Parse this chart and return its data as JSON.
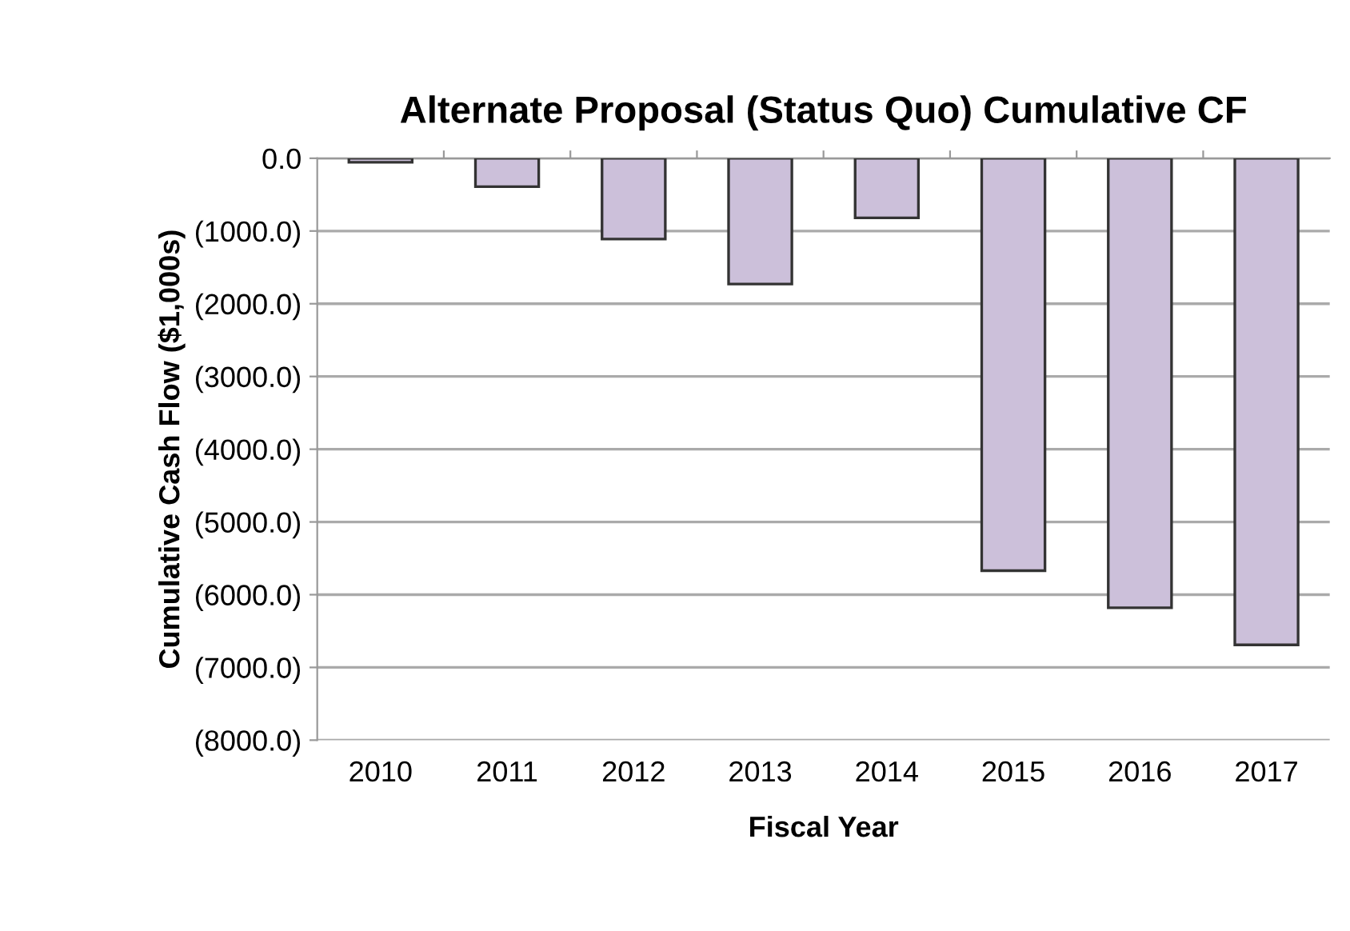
{
  "chart_data": {
    "type": "bar",
    "title": "Alternate Proposal (Status Quo) Cumulative CF",
    "xlabel": "Fiscal Year",
    "ylabel": "Cumulative Cash Flow ($1,000s)",
    "categories": [
      "2010",
      "2011",
      "2012",
      "2013",
      "2014",
      "2015",
      "2016",
      "2017"
    ],
    "values": [
      -55,
      -390,
      -1110,
      -1730,
      -820,
      -5670,
      -6180,
      -6690
    ],
    "color": "#ccc0da",
    "ylim": [
      -8000,
      0
    ],
    "yticks": [
      {
        "value": 0,
        "label": "0.0"
      },
      {
        "value": -1000,
        "label": "(1000.0)"
      },
      {
        "value": -2000,
        "label": "(2000.0)"
      },
      {
        "value": -3000,
        "label": "(3000.0)"
      },
      {
        "value": -4000,
        "label": "(4000.0)"
      },
      {
        "value": -5000,
        "label": "(5000.0)"
      },
      {
        "value": -6000,
        "label": "(6000.0)"
      },
      {
        "value": -7000,
        "label": "(7000.0)"
      },
      {
        "value": -8000,
        "label": "(8000.0)"
      }
    ],
    "grid": "y"
  }
}
